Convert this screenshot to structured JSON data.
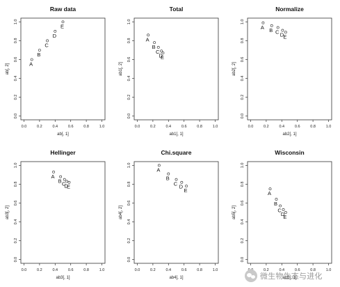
{
  "chart_data": [
    {
      "type": "scatter",
      "title": "Raw data",
      "xlabel": "ab[, 1]",
      "ylabel": "ab[, 2]",
      "xlim": [
        0,
        1
      ],
      "ylim": [
        0,
        1
      ],
      "xticks": [
        "0.0",
        "0.2",
        "0.4",
        "0.6",
        "0.8",
        "1.0"
      ],
      "yticks": [
        "0.0",
        "0.2",
        "0.4",
        "0.6",
        "0.8",
        "1.0"
      ],
      "grid": false,
      "points": [
        {
          "label": "A",
          "x": 0.1,
          "y": 0.6
        },
        {
          "label": "B",
          "x": 0.2,
          "y": 0.7
        },
        {
          "label": "C",
          "x": 0.3,
          "y": 0.8
        },
        {
          "label": "D",
          "x": 0.4,
          "y": 0.9
        },
        {
          "label": "E",
          "x": 0.5,
          "y": 1.0
        }
      ]
    },
    {
      "type": "scatter",
      "title": "Total",
      "xlabel": "ab1[, 1]",
      "ylabel": "ab1[, 2]",
      "xlim": [
        0,
        1
      ],
      "ylim": [
        0,
        1
      ],
      "xticks": [
        "0.0",
        "0.2",
        "0.4",
        "0.6",
        "0.8",
        "1.0"
      ],
      "yticks": [
        "0.0",
        "0.2",
        "0.4",
        "0.6",
        "0.8",
        "1.0"
      ],
      "grid": false,
      "points": [
        {
          "label": "A",
          "x": 0.14,
          "y": 0.86
        },
        {
          "label": "B",
          "x": 0.22,
          "y": 0.78
        },
        {
          "label": "C",
          "x": 0.27,
          "y": 0.73
        },
        {
          "label": "D",
          "x": 0.31,
          "y": 0.69
        },
        {
          "label": "E",
          "x": 0.33,
          "y": 0.67
        }
      ]
    },
    {
      "type": "scatter",
      "title": "Normalize",
      "xlabel": "ab2[, 1]",
      "ylabel": "ab2[, 2]",
      "xlim": [
        0,
        1
      ],
      "ylim": [
        0,
        1
      ],
      "xticks": [
        "0.0",
        "0.2",
        "0.4",
        "0.6",
        "0.8",
        "1.0"
      ],
      "yticks": [
        "0.0",
        "0.2",
        "0.4",
        "0.6",
        "0.8",
        "1.0"
      ],
      "grid": false,
      "points": [
        {
          "label": "A",
          "x": 0.16,
          "y": 0.99
        },
        {
          "label": "B",
          "x": 0.27,
          "y": 0.96
        },
        {
          "label": "C",
          "x": 0.35,
          "y": 0.94
        },
        {
          "label": "D",
          "x": 0.41,
          "y": 0.91
        },
        {
          "label": "E",
          "x": 0.45,
          "y": 0.89
        }
      ]
    },
    {
      "type": "scatter",
      "title": "Hellinger",
      "xlabel": "ab3[, 1]",
      "ylabel": "ab3[, 2]",
      "xlim": [
        0,
        1
      ],
      "ylim": [
        0,
        1
      ],
      "xticks": [
        "0.0",
        "0.2",
        "0.4",
        "0.6",
        "0.8",
        "1.0"
      ],
      "yticks": [
        "0.0",
        "0.2",
        "0.4",
        "0.6",
        "0.8",
        "1.0"
      ],
      "grid": false,
      "points": [
        {
          "label": "A",
          "x": 0.38,
          "y": 0.93
        },
        {
          "label": "B",
          "x": 0.47,
          "y": 0.88
        },
        {
          "label": "C",
          "x": 0.52,
          "y": 0.85
        },
        {
          "label": "D",
          "x": 0.55,
          "y": 0.83
        },
        {
          "label": "E",
          "x": 0.58,
          "y": 0.82
        }
      ]
    },
    {
      "type": "scatter",
      "title": "Chi.square",
      "xlabel": "ab4[, 1]",
      "ylabel": "ab4[, 2]",
      "xlim": [
        0,
        1
      ],
      "ylim": [
        0,
        1
      ],
      "xticks": [
        "0.0",
        "0.2",
        "0.4",
        "0.6",
        "0.8",
        "1.0"
      ],
      "yticks": [
        "0.0",
        "0.2",
        "0.4",
        "0.6",
        "0.8",
        "1.0"
      ],
      "grid": false,
      "points": [
        {
          "label": "A",
          "x": 0.28,
          "y": 1.0
        },
        {
          "label": "B",
          "x": 0.4,
          "y": 0.91
        },
        {
          "label": "C",
          "x": 0.5,
          "y": 0.85
        },
        {
          "label": "D",
          "x": 0.57,
          "y": 0.82
        },
        {
          "label": "E",
          "x": 0.63,
          "y": 0.78
        }
      ]
    },
    {
      "type": "scatter",
      "title": "Wisconsin",
      "xlabel": "ab5[, 1]",
      "ylabel": "ab5[, 2]",
      "xlim": [
        0,
        1
      ],
      "ylim": [
        0,
        1
      ],
      "xticks": [
        "0.0",
        "0.2",
        "0.4",
        "0.6",
        "0.8",
        "1.0"
      ],
      "yticks": [
        "0.0",
        "0.2",
        "0.4",
        "0.6",
        "0.8",
        "1.0"
      ],
      "grid": false,
      "points": [
        {
          "label": "A",
          "x": 0.25,
          "y": 0.75
        },
        {
          "label": "B",
          "x": 0.33,
          "y": 0.64
        },
        {
          "label": "C",
          "x": 0.38,
          "y": 0.57
        },
        {
          "label": "D",
          "x": 0.42,
          "y": 0.53
        },
        {
          "label": "E",
          "x": 0.45,
          "y": 0.5
        }
      ]
    }
  ],
  "watermark": {
    "text": "微生物生态与进化",
    "icon": "wechat-icon"
  }
}
